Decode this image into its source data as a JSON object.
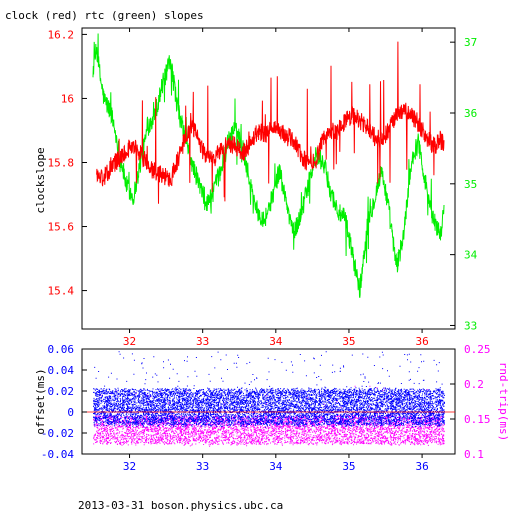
{
  "title": "clock (red) rtc (green) slopes",
  "footer": "2013-03-31 boson.physics.ubc.ca",
  "colors": {
    "clock": "#ff0000",
    "rtc": "#00ee00",
    "offset": "#0000ff",
    "rndtrip": "#ff00ff",
    "axis": "#000000"
  },
  "chart_data": [
    {
      "type": "line",
      "title": "clock (red) rtc (green) slopes",
      "xlim": [
        31.35,
        36.45
      ],
      "x_ticks": [
        32,
        33,
        34,
        35,
        36
      ],
      "y_left": {
        "label": "clockslope",
        "lim": [
          15.28,
          16.22
        ],
        "ticks": [
          15.4,
          15.6,
          15.8,
          16,
          16.2
        ],
        "tick_labels": [
          "15.4",
          "15.6",
          "15.8",
          "16",
          "16.2"
        ],
        "color": "#ff0000"
      },
      "y_right": {
        "label": "",
        "lim": [
          32.95,
          37.2
        ],
        "ticks": [
          33,
          34,
          35,
          36,
          37
        ],
        "tick_labels": [
          "33",
          "34",
          "35",
          "36",
          "37"
        ],
        "color": "#00ee00"
      },
      "grid": false,
      "series": [
        {
          "name": "clock",
          "axis": "left",
          "color": "#ff0000",
          "x": [
            31.55,
            31.65,
            31.75,
            31.85,
            31.95,
            32.05,
            32.15,
            32.25,
            32.35,
            32.45,
            32.55,
            32.65,
            32.75,
            32.85,
            32.95,
            33.05,
            33.15,
            33.25,
            33.35,
            33.45,
            33.55,
            33.65,
            33.75,
            33.85,
            33.95,
            34.05,
            34.15,
            34.25,
            34.35,
            34.45,
            34.55,
            34.65,
            34.75,
            34.85,
            34.95,
            35.05,
            35.15,
            35.25,
            35.35,
            35.45,
            35.55,
            35.65,
            35.75,
            35.85,
            35.95,
            36.05,
            36.15,
            36.25,
            36.3
          ],
          "y": [
            15.76,
            15.75,
            15.79,
            15.81,
            15.84,
            15.85,
            15.83,
            15.79,
            15.77,
            15.76,
            15.75,
            15.8,
            15.87,
            15.92,
            15.86,
            15.82,
            15.81,
            15.84,
            15.86,
            15.85,
            15.83,
            15.86,
            15.9,
            15.89,
            15.9,
            15.9,
            15.88,
            15.87,
            15.82,
            15.79,
            15.81,
            15.87,
            15.9,
            15.9,
            15.93,
            15.95,
            15.93,
            15.91,
            15.88,
            15.87,
            15.9,
            15.95,
            15.96,
            15.95,
            15.92,
            15.88,
            15.85,
            15.87,
            15.86
          ]
        },
        {
          "name": "rtc",
          "axis": "right",
          "color": "#00ee00",
          "x": [
            31.5,
            31.55,
            31.6,
            31.65,
            31.75,
            31.85,
            31.95,
            32.05,
            32.15,
            32.25,
            32.35,
            32.45,
            32.55,
            32.6,
            32.65,
            32.75,
            32.85,
            32.95,
            33.05,
            33.15,
            33.25,
            33.35,
            33.45,
            33.55,
            33.65,
            33.75,
            33.85,
            33.95,
            34.05,
            34.15,
            34.25,
            34.35,
            34.45,
            34.55,
            34.65,
            34.75,
            34.85,
            34.95,
            35.05,
            35.15,
            35.25,
            35.35,
            35.45,
            35.55,
            35.65,
            35.75,
            35.85,
            35.95,
            36.05,
            36.15,
            36.25,
            36.3
          ],
          "y": [
            36.6,
            36.9,
            36.5,
            36.2,
            36.0,
            35.5,
            35.0,
            34.8,
            35.3,
            35.8,
            36.0,
            36.4,
            36.7,
            36.5,
            36.1,
            35.7,
            35.3,
            35.0,
            34.7,
            34.9,
            35.2,
            35.6,
            35.8,
            35.5,
            35.0,
            34.6,
            34.5,
            34.8,
            35.2,
            34.7,
            34.3,
            34.6,
            35.0,
            35.4,
            35.3,
            34.9,
            34.6,
            34.5,
            34.0,
            33.5,
            34.4,
            34.8,
            35.2,
            34.6,
            33.8,
            34.3,
            35.3,
            35.6,
            35.0,
            34.5,
            34.3,
            34.6
          ]
        }
      ]
    },
    {
      "type": "scatter",
      "xlim": [
        31.35,
        36.45
      ],
      "x_ticks": [
        32,
        33,
        34,
        35,
        36
      ],
      "y_left": {
        "label": "offset(ms)",
        "lim": [
          -0.04,
          0.06
        ],
        "ticks": [
          -0.04,
          -0.02,
          0,
          0.02,
          0.04,
          0.06
        ],
        "tick_labels": [
          "-0.04",
          "-0.02",
          "0",
          "0.02",
          "0.04",
          "0.06"
        ],
        "color": "#0000ff"
      },
      "y_right": {
        "label": "rnd-trip(ms)",
        "lim": [
          0.1,
          0.25
        ],
        "ticks": [
          0.1,
          0.15,
          0.2,
          0.25
        ],
        "tick_labels": [
          "0.1",
          "0.15",
          "0.2",
          "0.25"
        ],
        "color": "#ff00ff"
      },
      "grid": false,
      "series": [
        {
          "name": "offset",
          "axis": "left",
          "color": "#0000ff",
          "x_range": [
            31.5,
            36.3
          ],
          "center": 0.002,
          "spread": 0.012,
          "band": [
            -0.012,
            0.022
          ]
        },
        {
          "name": "rnd-trip",
          "axis": "right",
          "color": "#ff00ff",
          "x_range": [
            31.5,
            36.3
          ],
          "center": 0.128,
          "spread": 0.015,
          "band": [
            0.115,
            0.155
          ]
        }
      ]
    }
  ]
}
